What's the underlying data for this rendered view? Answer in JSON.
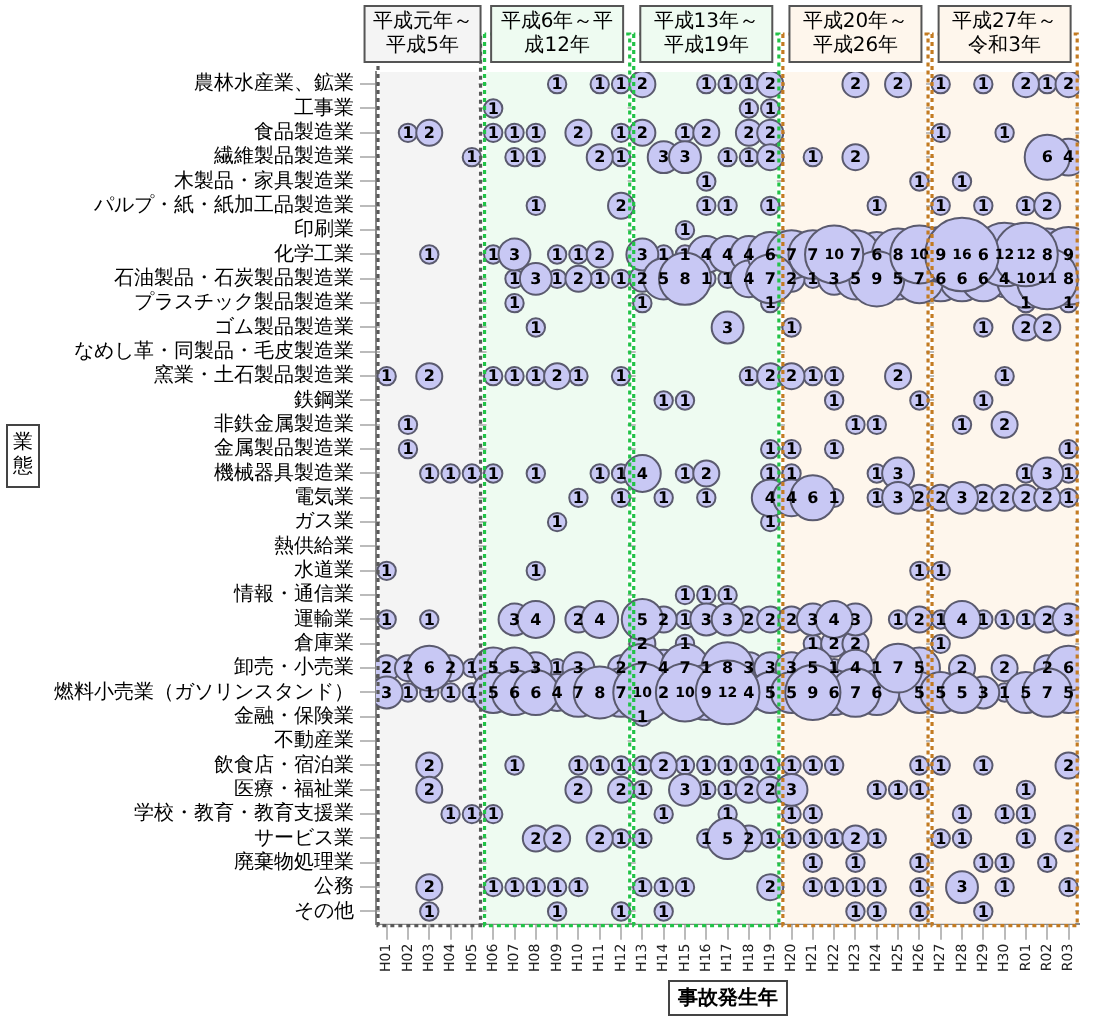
{
  "chart_data": {
    "type": "heatmap",
    "xlabel": "事故発生年",
    "ylabel": "業態",
    "color": "#c8c8f4",
    "grid": true,
    "data_labels": true,
    "categories": [
      "H01",
      "H02",
      "H03",
      "H04",
      "H05",
      "H06",
      "H07",
      "H08",
      "H09",
      "H10",
      "H11",
      "H12",
      "H13",
      "H14",
      "H15",
      "H16",
      "H17",
      "H18",
      "H19",
      "H20",
      "H21",
      "H22",
      "H23",
      "H24",
      "H25",
      "H26",
      "H27",
      "H28",
      "H29",
      "H30",
      "R01",
      "R02",
      "R03"
    ],
    "y_categories": [
      "農林水産業、鉱業",
      "工事業",
      "食品製造業",
      "繊維製品製造業",
      "木製品・家具製造業",
      "パルプ・紙・紙加工品製造業",
      "印刷業",
      "化学工業",
      "石油製品・石炭製品製造業",
      "プラスチック製品製造業",
      "ゴム製品製造業",
      "なめし革・同製品・毛皮製造業",
      "窯業・土石製品製造業",
      "鉄鋼業",
      "非鉄金属製造業",
      "金属製品製造業",
      "機械器具製造業",
      "電気業",
      "ガス業",
      "熱供給業",
      "水道業",
      "情報・通信業",
      "運輸業",
      "倉庫業",
      "卸売・小売業",
      "燃料小売業（ガソリンスタンド）",
      "金融・保険業",
      "不動産業",
      "飲食店・宿泊業",
      "医療・福祉業",
      "学校・教育・教育支援業",
      "サービス業",
      "廃棄物処理業",
      "公務",
      "その他"
    ],
    "bands": [
      {
        "axis": "x",
        "from": "H01",
        "to": "H05",
        "label": "平成元年～平成5年",
        "color": "#f4f4f4"
      },
      {
        "axis": "x",
        "from": "H06",
        "to": "H12",
        "label": "平成6年～平成12年",
        "color": "#eefbf1"
      },
      {
        "axis": "x",
        "from": "H13",
        "to": "H19",
        "label": "平成13年～平成19年",
        "color": "#eefbf1"
      },
      {
        "axis": "x",
        "from": "H20",
        "to": "H26",
        "label": "平成20年～平成26年",
        "color": "#fef6ec"
      },
      {
        "axis": "x",
        "from": "H27",
        "to": "R03",
        "label": "平成27年～令和3年",
        "color": "#fef6ec"
      }
    ],
    "cells": [
      [
        null,
        null,
        null,
        null,
        null,
        null,
        null,
        null,
        1,
        null,
        1,
        1,
        2,
        null,
        null,
        1,
        1,
        1,
        2,
        null,
        null,
        null,
        2,
        null,
        2,
        null,
        1,
        null,
        1,
        null,
        2,
        1,
        2
      ],
      [
        null,
        null,
        null,
        null,
        null,
        1,
        null,
        null,
        null,
        null,
        null,
        null,
        null,
        null,
        null,
        null,
        null,
        1,
        1,
        null,
        null,
        null,
        null,
        null,
        null,
        null,
        null,
        null,
        null,
        null,
        null,
        null,
        null
      ],
      [
        null,
        1,
        2,
        null,
        null,
        1,
        1,
        1,
        null,
        2,
        null,
        1,
        2,
        null,
        1,
        2,
        null,
        2,
        2,
        null,
        null,
        null,
        null,
        null,
        null,
        null,
        1,
        null,
        null,
        1,
        null,
        null,
        null
      ],
      [
        null,
        null,
        null,
        null,
        1,
        null,
        1,
        1,
        null,
        null,
        2,
        1,
        null,
        3,
        3,
        null,
        1,
        1,
        2,
        null,
        1,
        null,
        2,
        null,
        null,
        null,
        null,
        null,
        null,
        null,
        null,
        6,
        4
      ],
      [
        null,
        null,
        null,
        null,
        null,
        null,
        null,
        null,
        null,
        null,
        null,
        null,
        null,
        null,
        null,
        1,
        null,
        null,
        null,
        null,
        null,
        null,
        null,
        null,
        null,
        1,
        null,
        1,
        null,
        null,
        null,
        null,
        null
      ],
      [
        null,
        null,
        null,
        null,
        null,
        null,
        null,
        1,
        null,
        null,
        null,
        2,
        null,
        null,
        null,
        1,
        1,
        null,
        1,
        null,
        null,
        null,
        null,
        1,
        null,
        null,
        1,
        null,
        1,
        null,
        1,
        2,
        null
      ],
      [
        null,
        null,
        null,
        null,
        null,
        null,
        null,
        null,
        null,
        null,
        null,
        null,
        null,
        null,
        1,
        null,
        null,
        null,
        null,
        null,
        null,
        null,
        null,
        null,
        null,
        null,
        null,
        null,
        null,
        null,
        null,
        null,
        null
      ],
      [
        null,
        null,
        1,
        null,
        null,
        1,
        3,
        null,
        1,
        1,
        2,
        null,
        3,
        1,
        1,
        4,
        4,
        4,
        6,
        7,
        7,
        10,
        7,
        6,
        8,
        10,
        9,
        16,
        6,
        12,
        12,
        8,
        9
      ],
      [
        null,
        null,
        null,
        null,
        null,
        null,
        1,
        3,
        1,
        2,
        1,
        1,
        2,
        5,
        8,
        1,
        1,
        4,
        7,
        2,
        1,
        3,
        5,
        9,
        5,
        7,
        6,
        6,
        6,
        4,
        10,
        11,
        8
      ],
      [
        null,
        null,
        null,
        null,
        null,
        null,
        1,
        null,
        null,
        null,
        null,
        null,
        1,
        null,
        null,
        null,
        null,
        null,
        1,
        null,
        null,
        null,
        null,
        null,
        null,
        null,
        null,
        null,
        null,
        null,
        1,
        null,
        1
      ],
      [
        null,
        null,
        null,
        null,
        null,
        null,
        null,
        1,
        null,
        null,
        null,
        null,
        null,
        null,
        null,
        null,
        3,
        null,
        null,
        1,
        null,
        null,
        null,
        null,
        null,
        null,
        null,
        null,
        1,
        null,
        2,
        2,
        null
      ],
      [
        null,
        null,
        null,
        null,
        null,
        null,
        null,
        null,
        null,
        null,
        null,
        null,
        null,
        null,
        null,
        null,
        null,
        null,
        null,
        null,
        null,
        null,
        null,
        null,
        null,
        null,
        null,
        null,
        null,
        null,
        null,
        null,
        null
      ],
      [
        1,
        null,
        2,
        null,
        null,
        1,
        1,
        1,
        2,
        1,
        null,
        1,
        null,
        null,
        null,
        null,
        null,
        1,
        2,
        2,
        1,
        1,
        null,
        null,
        2,
        null,
        null,
        null,
        null,
        1,
        null,
        null,
        null
      ],
      [
        null,
        null,
        null,
        null,
        null,
        null,
        null,
        null,
        null,
        null,
        null,
        null,
        null,
        1,
        1,
        null,
        null,
        null,
        null,
        null,
        null,
        1,
        null,
        null,
        null,
        1,
        null,
        null,
        1,
        null,
        null,
        null,
        null
      ],
      [
        null,
        1,
        null,
        null,
        null,
        null,
        null,
        null,
        null,
        null,
        null,
        null,
        null,
        null,
        null,
        null,
        null,
        null,
        null,
        null,
        null,
        null,
        1,
        1,
        null,
        null,
        null,
        1,
        null,
        2,
        null,
        null,
        null
      ],
      [
        null,
        1,
        null,
        null,
        null,
        null,
        null,
        null,
        null,
        null,
        null,
        null,
        null,
        null,
        null,
        null,
        null,
        null,
        1,
        1,
        null,
        1,
        null,
        null,
        null,
        null,
        null,
        null,
        null,
        null,
        null,
        null,
        1
      ],
      [
        null,
        null,
        1,
        1,
        1,
        1,
        null,
        1,
        null,
        null,
        1,
        1,
        4,
        null,
        1,
        2,
        null,
        null,
        1,
        1,
        null,
        null,
        null,
        1,
        3,
        null,
        null,
        null,
        null,
        null,
        1,
        3,
        1
      ],
      [
        null,
        null,
        null,
        null,
        null,
        null,
        null,
        null,
        null,
        1,
        null,
        1,
        null,
        1,
        null,
        1,
        null,
        null,
        4,
        4,
        6,
        1,
        null,
        1,
        3,
        2,
        2,
        3,
        2,
        2,
        2,
        2,
        1
      ],
      [
        null,
        null,
        null,
        null,
        null,
        null,
        null,
        null,
        1,
        null,
        null,
        null,
        null,
        null,
        null,
        null,
        null,
        null,
        1,
        null,
        null,
        null,
        null,
        null,
        null,
        null,
        null,
        null,
        null,
        null,
        null,
        null,
        null
      ],
      [
        null,
        null,
        null,
        null,
        null,
        null,
        null,
        null,
        null,
        null,
        null,
        null,
        null,
        null,
        null,
        null,
        null,
        null,
        null,
        null,
        null,
        null,
        null,
        null,
        null,
        null,
        null,
        null,
        null,
        null,
        null,
        null,
        null
      ],
      [
        1,
        null,
        null,
        null,
        null,
        null,
        null,
        1,
        null,
        null,
        null,
        null,
        null,
        null,
        null,
        null,
        null,
        null,
        null,
        null,
        null,
        null,
        null,
        null,
        null,
        1,
        1,
        null,
        null,
        null,
        null,
        null,
        null
      ],
      [
        null,
        null,
        null,
        null,
        null,
        null,
        null,
        null,
        null,
        null,
        null,
        null,
        null,
        null,
        1,
        1,
        1,
        null,
        null,
        null,
        null,
        null,
        null,
        null,
        null,
        null,
        null,
        null,
        null,
        null,
        null,
        null,
        null
      ],
      [
        1,
        null,
        1,
        null,
        null,
        null,
        3,
        4,
        null,
        2,
        4,
        null,
        5,
        2,
        1,
        3,
        3,
        2,
        2,
        2,
        3,
        4,
        3,
        null,
        1,
        2,
        1,
        4,
        1,
        1,
        1,
        2,
        3
      ],
      [
        null,
        null,
        null,
        null,
        null,
        null,
        null,
        null,
        null,
        null,
        null,
        null,
        2,
        null,
        1,
        null,
        null,
        null,
        null,
        null,
        1,
        2,
        2,
        null,
        null,
        null,
        1,
        null,
        null,
        null,
        null,
        null,
        null
      ],
      [
        2,
        2,
        6,
        2,
        1,
        5,
        5,
        3,
        1,
        3,
        null,
        2,
        7,
        4,
        7,
        1,
        8,
        3,
        3,
        3,
        5,
        1,
        4,
        1,
        7,
        5,
        null,
        2,
        null,
        2,
        null,
        2,
        6
      ],
      [
        3,
        1,
        1,
        1,
        1,
        5,
        6,
        6,
        4,
        7,
        8,
        7,
        10,
        2,
        10,
        9,
        12,
        4,
        5,
        5,
        9,
        6,
        7,
        6,
        null,
        5,
        5,
        5,
        3,
        1,
        5,
        7,
        5
      ],
      [
        null,
        null,
        null,
        null,
        null,
        null,
        null,
        null,
        null,
        null,
        null,
        null,
        1,
        null,
        null,
        null,
        null,
        null,
        null,
        null,
        null,
        null,
        null,
        null,
        null,
        null,
        null,
        null,
        null,
        null,
        null,
        null,
        null
      ],
      [
        null,
        null,
        null,
        null,
        null,
        null,
        null,
        null,
        null,
        null,
        null,
        null,
        null,
        null,
        null,
        null,
        null,
        null,
        null,
        null,
        null,
        null,
        null,
        null,
        null,
        null,
        null,
        null,
        null,
        null,
        null,
        null,
        null
      ],
      [
        null,
        null,
        2,
        null,
        null,
        null,
        1,
        null,
        null,
        1,
        1,
        1,
        1,
        2,
        1,
        1,
        1,
        1,
        1,
        1,
        1,
        1,
        null,
        null,
        null,
        1,
        1,
        null,
        1,
        null,
        null,
        null,
        2
      ],
      [
        null,
        null,
        2,
        null,
        null,
        null,
        null,
        null,
        null,
        2,
        null,
        2,
        1,
        null,
        3,
        1,
        1,
        2,
        2,
        3,
        null,
        null,
        null,
        1,
        1,
        1,
        null,
        null,
        null,
        null,
        1,
        null,
        null
      ],
      [
        null,
        null,
        null,
        1,
        1,
        1,
        null,
        null,
        null,
        null,
        null,
        null,
        null,
        1,
        null,
        null,
        1,
        null,
        null,
        1,
        1,
        null,
        null,
        null,
        null,
        null,
        null,
        1,
        null,
        1,
        1,
        null,
        null
      ],
      [
        null,
        null,
        null,
        null,
        null,
        null,
        null,
        2,
        2,
        null,
        2,
        1,
        1,
        null,
        null,
        1,
        5,
        2,
        1,
        1,
        1,
        1,
        2,
        1,
        null,
        null,
        1,
        1,
        null,
        null,
        1,
        null,
        2
      ],
      [
        null,
        null,
        null,
        null,
        null,
        null,
        null,
        null,
        null,
        null,
        null,
        null,
        null,
        null,
        null,
        null,
        null,
        null,
        null,
        null,
        1,
        null,
        1,
        null,
        null,
        1,
        null,
        null,
        1,
        1,
        null,
        1,
        null
      ],
      [
        null,
        null,
        2,
        null,
        null,
        1,
        1,
        1,
        1,
        1,
        null,
        null,
        1,
        1,
        1,
        null,
        null,
        null,
        2,
        null,
        1,
        1,
        1,
        1,
        null,
        1,
        null,
        3,
        null,
        1,
        null,
        null,
        1
      ],
      [
        null,
        null,
        1,
        null,
        null,
        null,
        null,
        null,
        1,
        null,
        null,
        1,
        null,
        1,
        null,
        null,
        null,
        null,
        null,
        null,
        null,
        null,
        1,
        1,
        null,
        1,
        null,
        null,
        1,
        null,
        null,
        null,
        null
      ]
    ]
  }
}
